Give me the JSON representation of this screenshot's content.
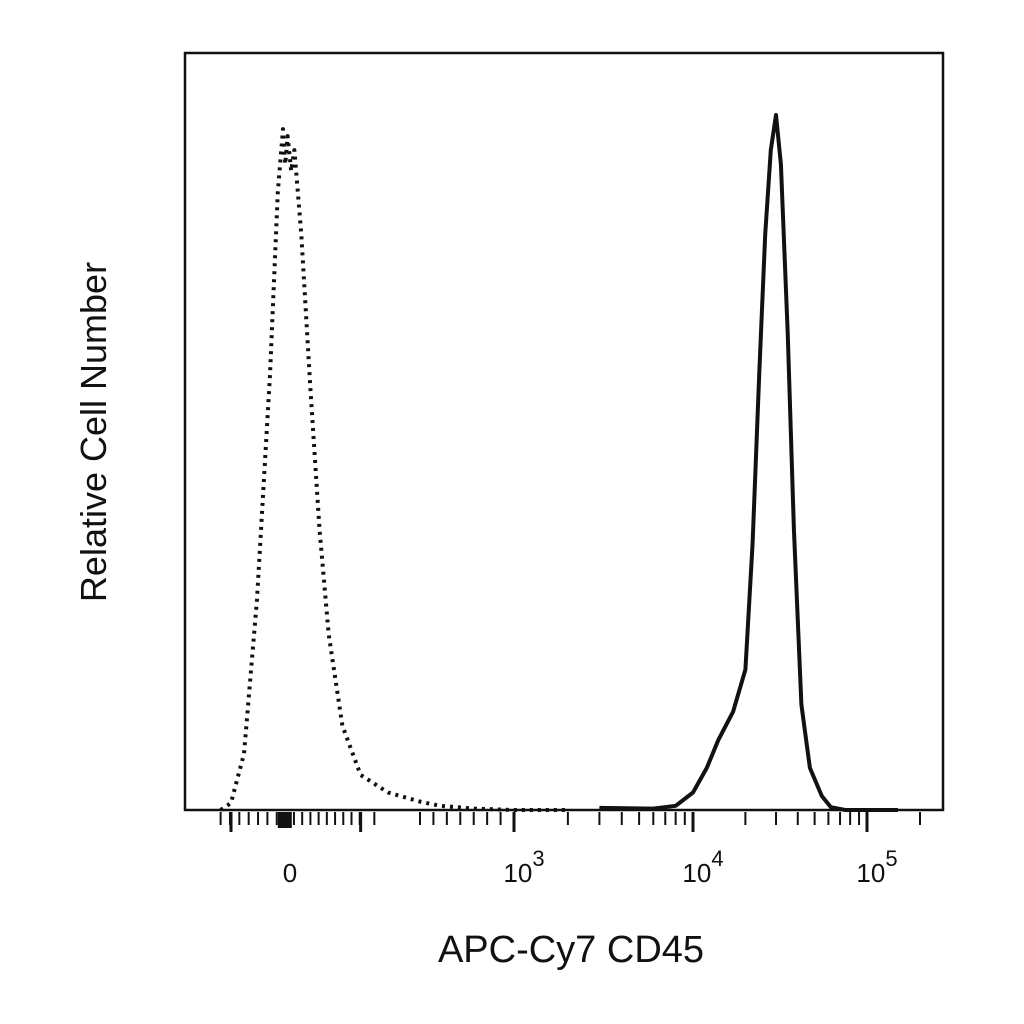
{
  "chart_data": {
    "type": "line",
    "title": "",
    "xlabel": "APC-Cy7 CD45",
    "ylabel": "Relative Cell Number",
    "x_scale": "biexponential (logicle)",
    "xlim": [
      -150,
      200000
    ],
    "ylim": [
      0,
      1
    ],
    "grid": false,
    "legend": "none",
    "x_ticks": [
      {
        "value": 0,
        "label": "0"
      },
      {
        "value": 1000,
        "base": "10",
        "exp": "3"
      },
      {
        "value": 10000,
        "base": "10",
        "exp": "4"
      },
      {
        "value": 100000,
        "base": "10",
        "exp": "5"
      }
    ],
    "series": [
      {
        "style": "dotted",
        "color": "#111111",
        "points": [
          [
            -120,
            0.0
          ],
          [
            -100,
            0.01
          ],
          [
            -75,
            0.08
          ],
          [
            -50,
            0.3
          ],
          [
            -25,
            0.62
          ],
          [
            -10,
            0.88
          ],
          [
            0,
            0.97
          ],
          [
            5,
            0.92
          ],
          [
            10,
            0.96
          ],
          [
            18,
            0.91
          ],
          [
            25,
            0.94
          ],
          [
            40,
            0.82
          ],
          [
            60,
            0.6
          ],
          [
            80,
            0.4
          ],
          [
            100,
            0.25
          ],
          [
            130,
            0.12
          ],
          [
            170,
            0.05
          ],
          [
            230,
            0.025
          ],
          [
            300,
            0.012
          ],
          [
            450,
            0.006
          ],
          [
            700,
            0.002
          ],
          [
            1000,
            0.0
          ],
          [
            2000,
            0.0
          ]
        ]
      },
      {
        "style": "solid",
        "color": "#111111",
        "points": [
          [
            3000,
            0.003
          ],
          [
            6000,
            0.002
          ],
          [
            8000,
            0.006
          ],
          [
            10000,
            0.025
          ],
          [
            12000,
            0.06
          ],
          [
            14000,
            0.1
          ],
          [
            17000,
            0.14
          ],
          [
            20000,
            0.2
          ],
          [
            22000,
            0.38
          ],
          [
            24000,
            0.62
          ],
          [
            26000,
            0.82
          ],
          [
            28000,
            0.94
          ],
          [
            30000,
            0.99
          ],
          [
            32000,
            0.92
          ],
          [
            35000,
            0.68
          ],
          [
            38000,
            0.4
          ],
          [
            42000,
            0.15
          ],
          [
            47000,
            0.06
          ],
          [
            55000,
            0.02
          ],
          [
            62000,
            0.004
          ],
          [
            75000,
            0.0
          ],
          [
            150000,
            0.0
          ]
        ]
      }
    ]
  }
}
